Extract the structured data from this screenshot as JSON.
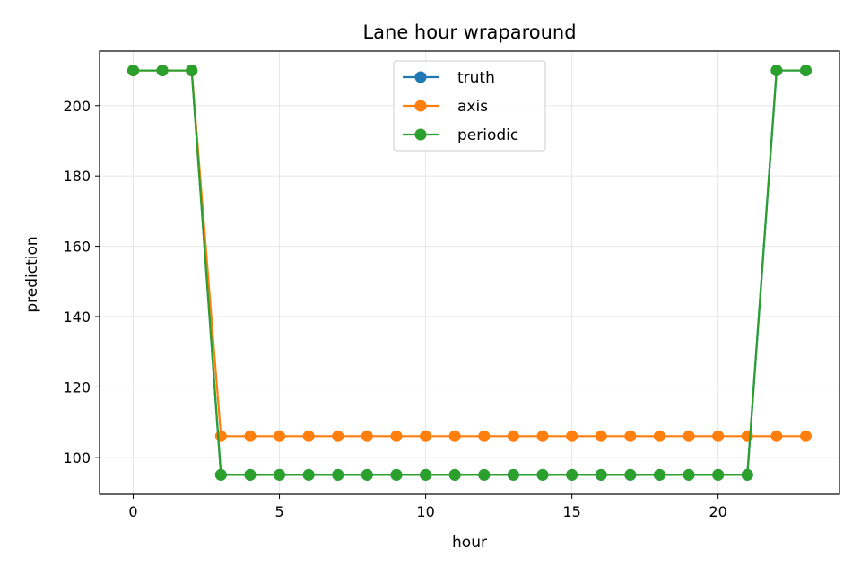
{
  "chart_data": {
    "type": "line",
    "title": "Lane hour wraparound",
    "xlabel": "hour",
    "ylabel": "prediction",
    "xlim": [
      -1.15,
      24.15
    ],
    "ylim": [
      89.5,
      215.5
    ],
    "xticks": [
      0,
      5,
      10,
      15,
      20
    ],
    "yticks": [
      100,
      120,
      140,
      160,
      180,
      200
    ],
    "grid": true,
    "legend_position": "upper center",
    "x": [
      0,
      1,
      2,
      3,
      4,
      5,
      6,
      7,
      8,
      9,
      10,
      11,
      12,
      13,
      14,
      15,
      16,
      17,
      18,
      19,
      20,
      21,
      22,
      23
    ],
    "series": [
      {
        "name": "truth",
        "color": "#1f77b4",
        "values": [
          210,
          210,
          210,
          95,
          95,
          95,
          95,
          95,
          95,
          95,
          95,
          95,
          95,
          95,
          95,
          95,
          95,
          95,
          95,
          95,
          95,
          95,
          210,
          210
        ]
      },
      {
        "name": "axis",
        "color": "#ff7f0e",
        "values": [
          210,
          210,
          210,
          106,
          106,
          106,
          106,
          106,
          106,
          106,
          106,
          106,
          106,
          106,
          106,
          106,
          106,
          106,
          106,
          106,
          106,
          106,
          106,
          106
        ]
      },
      {
        "name": "periodic",
        "color": "#2ca02c",
        "values": [
          210,
          210,
          210,
          95,
          95,
          95,
          95,
          95,
          95,
          95,
          95,
          95,
          95,
          95,
          95,
          95,
          95,
          95,
          95,
          95,
          95,
          95,
          210,
          210
        ]
      }
    ]
  }
}
